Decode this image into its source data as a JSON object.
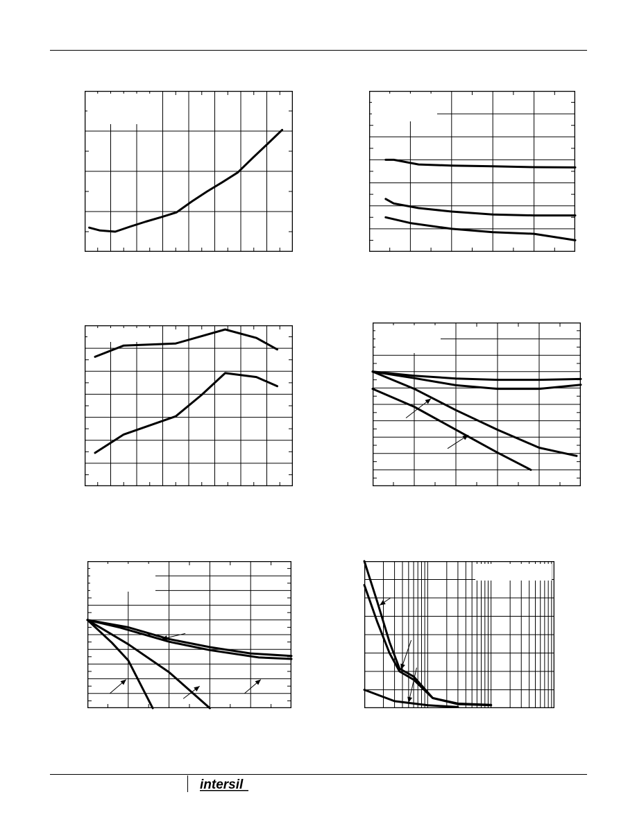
{
  "page": {
    "logo_text": "intersil"
  },
  "chart_data": [
    {
      "type": "line",
      "grid": {
        "x_divisions": 8,
        "y_divisions": 4,
        "minor": true
      },
      "series": [
        {
          "values": [
            [
              0.15,
              0.6
            ],
            [
              0.5,
              0.53
            ],
            [
              1.0,
              0.5
            ],
            [
              1.5,
              0.63
            ],
            [
              2.0,
              0.75
            ],
            [
              2.5,
              0.86
            ],
            [
              3.0,
              0.98
            ],
            [
              3.5,
              1.25
            ],
            [
              4.0,
              1.5
            ],
            [
              4.5,
              1.73
            ],
            [
              5.0,
              1.97
            ],
            [
              5.5,
              2.34
            ],
            [
              6.0,
              2.7
            ],
            [
              6.45,
              3.03
            ]
          ]
        }
      ]
    },
    {
      "type": "line",
      "grid": {
        "x_divisions": 5,
        "y_divisions": 7,
        "minor": true
      },
      "series": [
        {
          "values": [
            [
              0.4,
              5.0
            ],
            [
              0.6,
              5.0
            ],
            [
              1.2,
              4.8
            ],
            [
              2.0,
              4.75
            ],
            [
              3.0,
              4.72
            ],
            [
              4.0,
              4.68
            ],
            [
              5.0,
              4.67
            ]
          ]
        },
        {
          "values": [
            [
              0.4,
              3.3
            ],
            [
              0.6,
              3.1
            ],
            [
              1.2,
              2.9
            ],
            [
              2.0,
              2.75
            ],
            [
              3.0,
              2.62
            ],
            [
              4.0,
              2.58
            ],
            [
              5.0,
              2.58
            ]
          ]
        },
        {
          "values": [
            [
              0.4,
              2.5
            ],
            [
              1.0,
              2.25
            ],
            [
              2.0,
              2.0
            ],
            [
              3.0,
              1.85
            ],
            [
              4.0,
              1.78
            ],
            [
              5.0,
              1.5
            ]
          ]
        }
      ]
    },
    {
      "type": "line",
      "grid": {
        "x_divisions": 8,
        "y_divisions": 7,
        "minor": true
      },
      "series": [
        {
          "values": [
            [
              0.4,
              5.63
            ],
            [
              1.5,
              6.12
            ],
            [
              3.5,
              6.21
            ],
            [
              5.4,
              6.82
            ],
            [
              6.6,
              6.45
            ],
            [
              7.4,
              5.95
            ]
          ]
        },
        {
          "values": [
            [
              0.4,
              1.45
            ],
            [
              1.5,
              2.25
            ],
            [
              3.5,
              3.04
            ],
            [
              4.5,
              3.98
            ],
            [
              5.4,
              4.92
            ],
            [
              6.6,
              4.75
            ],
            [
              7.4,
              4.35
            ]
          ]
        }
      ]
    },
    {
      "type": "line",
      "grid": {
        "x_divisions": 5,
        "y_divisions": 10,
        "minor": true
      },
      "series": [
        {
          "values": [
            [
              0,
              6.0
            ],
            [
              1.0,
              5.75
            ],
            [
              2.0,
              5.58
            ],
            [
              3.0,
              5.5
            ],
            [
              4.0,
              5.5
            ],
            [
              5.0,
              5.55
            ]
          ]
        },
        {
          "values": [
            [
              0,
              6.0
            ],
            [
              1.0,
              5.6
            ],
            [
              2.0,
              5.17
            ],
            [
              3.0,
              4.95
            ],
            [
              4.0,
              4.95
            ],
            [
              5.0,
              5.2
            ]
          ]
        },
        {
          "values": [
            [
              0,
              6.0
            ],
            [
              1.0,
              4.95
            ],
            [
              2.0,
              3.65
            ],
            [
              3.0,
              2.45
            ],
            [
              4.0,
              1.35
            ],
            [
              4.9,
              0.85
            ]
          ]
        },
        {
          "values": [
            [
              0,
              4.95
            ],
            [
              1.0,
              3.85
            ],
            [
              2.0,
              2.45
            ],
            [
              3.0,
              1.05
            ],
            [
              3.8,
              0.0
            ]
          ]
        }
      ],
      "arrows": [
        {
          "from": [
            0.8,
            3.17
          ],
          "to": [
            1.4,
            4.35
          ]
        },
        {
          "from": [
            1.8,
            1.3
          ],
          "to": [
            2.3,
            2.13
          ]
        }
      ]
    },
    {
      "type": "line",
      "grid": {
        "x_divisions": 5,
        "y_divisions": 10,
        "minor": true
      },
      "series": [
        {
          "values": [
            [
              0,
              6.0
            ],
            [
              0.8,
              5.48
            ],
            [
              2.0,
              4.52
            ],
            [
              3.0,
              3.95
            ],
            [
              4.2,
              3.45
            ],
            [
              5.0,
              3.35
            ]
          ]
        },
        {
          "values": [
            [
              0,
              6.0
            ],
            [
              1.0,
              5.5
            ],
            [
              2.0,
              4.7
            ],
            [
              3.0,
              4.15
            ],
            [
              4.0,
              3.72
            ],
            [
              5.0,
              3.55
            ]
          ]
        },
        {
          "values": [
            [
              0,
              6.0
            ],
            [
              1.0,
              4.35
            ],
            [
              2.0,
              2.45
            ],
            [
              3.0,
              0.0
            ]
          ]
        },
        {
          "values": [
            [
              0,
              6.0
            ],
            [
              0.6,
              4.45
            ],
            [
              1.0,
              3.25
            ],
            [
              1.6,
              0.0
            ]
          ]
        }
      ],
      "arrows": [
        {
          "from": [
            2.4,
            5.08
          ],
          "to": [
            1.82,
            4.7
          ]
        },
        {
          "from": [
            0.55,
            1.0
          ],
          "to": [
            0.95,
            1.95
          ]
        },
        {
          "from": [
            2.35,
            0.65
          ],
          "to": [
            2.75,
            1.5
          ]
        },
        {
          "from": [
            3.85,
            1.0
          ],
          "to": [
            4.25,
            1.95
          ]
        }
      ]
    },
    {
      "type": "line",
      "log_x": true,
      "grid": {
        "x_decades": 3,
        "y_divisions": 8,
        "minor": false
      },
      "series": [
        {
          "values": [
            [
              1,
              8.0
            ],
            [
              1.6,
              5.8
            ],
            [
              2.5,
              3.6
            ],
            [
              3.6,
              2.15
            ],
            [
              6,
              1.72
            ],
            [
              12,
              0.55
            ],
            [
              30,
              0.22
            ],
            [
              100,
              0.16
            ]
          ]
        },
        {
          "values": [
            [
              1,
              6.7
            ],
            [
              1.6,
              4.7
            ],
            [
              2.5,
              3.0
            ],
            [
              3.6,
              2.0
            ],
            [
              6,
              1.55
            ],
            [
              12,
              0.55
            ],
            [
              30,
              0.25
            ],
            [
              100,
              0.18
            ]
          ]
        },
        {
          "values": [
            [
              1,
              1.0
            ],
            [
              3,
              0.38
            ],
            [
              10,
              0.16
            ],
            [
              30,
              0.06
            ]
          ]
        }
      ],
      "arrows": [
        {
          "from": [
            2.6,
            6.0
          ],
          "to": [
            1.75,
            5.6
          ]
        },
        {
          "from": [
            5.5,
            3.7
          ],
          "to": [
            3.8,
            2.1
          ]
        },
        {
          "from": [
            6.7,
            2.2
          ],
          "to": [
            5.0,
            0.3
          ]
        }
      ]
    }
  ]
}
